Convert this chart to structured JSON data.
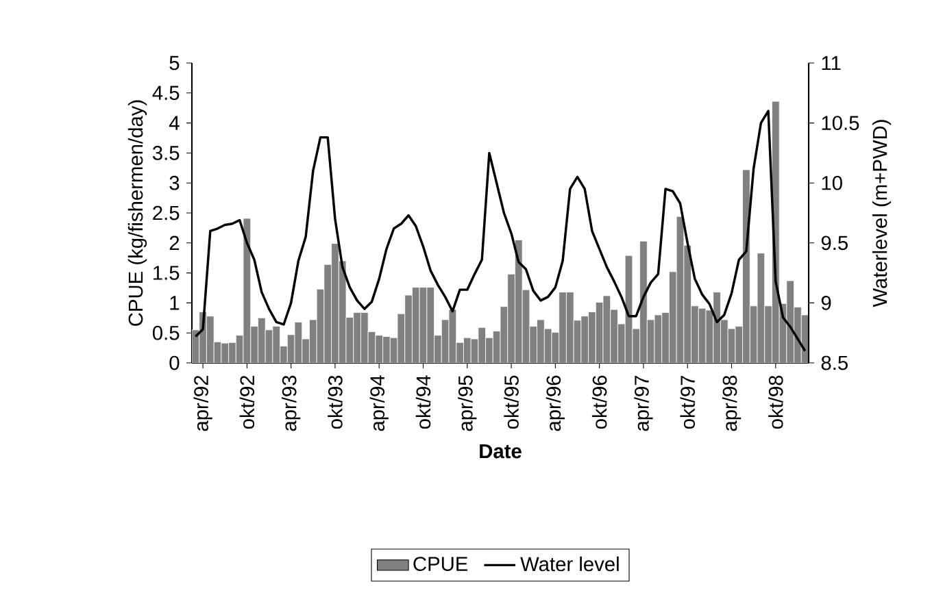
{
  "chart_data": {
    "type": "bar",
    "xlabel": "Date",
    "ylabel": "CPUE (kg/fishermen/day)",
    "y2label": "Waterlevel (m+PWD)",
    "x": [
      "1992-03",
      "1992-04",
      "1992-05",
      "1992-06",
      "1992-07",
      "1992-08",
      "1992-09",
      "1992-10",
      "1992-11",
      "1992-12",
      "1993-01",
      "1993-02",
      "1993-03",
      "1993-04",
      "1993-05",
      "1993-06",
      "1993-07",
      "1993-08",
      "1993-09",
      "1993-10",
      "1993-11",
      "1993-12",
      "1994-01",
      "1994-02",
      "1994-03",
      "1994-04",
      "1994-05",
      "1994-06",
      "1994-07",
      "1994-08",
      "1994-09",
      "1994-10",
      "1994-11",
      "1994-12",
      "1995-01",
      "1995-02",
      "1995-03",
      "1995-04",
      "1995-05",
      "1995-06",
      "1995-07",
      "1995-08",
      "1995-09",
      "1995-10",
      "1995-11",
      "1995-12",
      "1996-01",
      "1996-02",
      "1996-03",
      "1996-04",
      "1996-05",
      "1996-06",
      "1996-07",
      "1996-08",
      "1996-09",
      "1996-10",
      "1996-11",
      "1996-12",
      "1997-01",
      "1997-02",
      "1997-03",
      "1997-04",
      "1997-05",
      "1997-06",
      "1997-07",
      "1997-08",
      "1997-09",
      "1997-10",
      "1997-11",
      "1997-12",
      "1998-01",
      "1998-02",
      "1998-03",
      "1998-04",
      "1998-05",
      "1998-06",
      "1998-07",
      "1998-08",
      "1998-09",
      "1998-10",
      "1998-11",
      "1998-12",
      "1999-01",
      "1999-02"
    ],
    "series": [
      {
        "name": "CPUE",
        "color": "#808080",
        "values": [
          0.55,
          0.85,
          0.78,
          0.35,
          0.33,
          0.34,
          0.46,
          2.41,
          0.61,
          0.75,
          0.55,
          0.61,
          0.28,
          0.47,
          0.68,
          0.4,
          0.72,
          1.23,
          1.64,
          1.99,
          1.7,
          0.76,
          0.84,
          0.84,
          0.52,
          0.46,
          0.44,
          0.42,
          0.82,
          1.13,
          1.26,
          1.26,
          1.26,
          0.46,
          0.72,
          0.89,
          0.34,
          0.42,
          0.4,
          0.59,
          0.42,
          0.53,
          0.94,
          1.48,
          2.05,
          1.22,
          0.61,
          0.72,
          0.57,
          0.51,
          1.18,
          1.18,
          0.71,
          0.78,
          0.85,
          1.01,
          1.12,
          0.89,
          0.65,
          1.79,
          0.57,
          2.03,
          0.72,
          0.8,
          0.84,
          1.52,
          2.44,
          1.96,
          0.95,
          0.91,
          0.88,
          1.18,
          0.72,
          0.57,
          0.61,
          3.22,
          0.95,
          1.83,
          0.95,
          4.36,
          0.99,
          1.37,
          0.93,
          0.8
        ]
      },
      {
        "name": "Water level",
        "type": "line",
        "axis": "y2",
        "color": "#000000",
        "values": [
          8.72,
          8.78,
          9.6,
          9.62,
          9.65,
          9.66,
          9.69,
          9.5,
          9.36,
          9.09,
          8.95,
          8.84,
          8.82,
          9.0,
          9.35,
          9.55,
          10.1,
          10.38,
          10.38,
          9.7,
          9.3,
          9.13,
          9.02,
          8.95,
          9.01,
          9.2,
          9.45,
          9.62,
          9.66,
          9.73,
          9.64,
          9.47,
          9.27,
          9.15,
          9.05,
          8.93,
          9.11,
          9.11,
          9.24,
          9.36,
          10.25,
          10.0,
          9.75,
          9.58,
          9.34,
          9.28,
          9.1,
          9.02,
          9.05,
          9.13,
          9.35,
          9.95,
          10.05,
          9.95,
          9.6,
          9.45,
          9.3,
          9.18,
          9.05,
          8.89,
          8.89,
          9.05,
          9.17,
          9.24,
          9.95,
          9.93,
          9.83,
          9.5,
          9.2,
          9.07,
          8.99,
          8.84,
          8.9,
          9.08,
          9.36,
          9.43,
          10.12,
          10.5,
          10.6,
          9.18,
          8.88,
          8.8,
          8.7,
          8.6
        ]
      }
    ],
    "xlim": [
      "1992-02-16",
      "1999-02-16"
    ],
    "xticks": [
      {
        "value": "1992-04",
        "label": "apr/92"
      },
      {
        "value": "1992-10",
        "label": "okt/92"
      },
      {
        "value": "1993-04",
        "label": "apr/93"
      },
      {
        "value": "1993-10",
        "label": "okt/93"
      },
      {
        "value": "1994-04",
        "label": "apr/94"
      },
      {
        "value": "1994-10",
        "label": "okt/94"
      },
      {
        "value": "1995-04",
        "label": "apr/95"
      },
      {
        "value": "1995-10",
        "label": "okt/95"
      },
      {
        "value": "1996-04",
        "label": "apr/96"
      },
      {
        "value": "1996-10",
        "label": "okt/96"
      },
      {
        "value": "1997-04",
        "label": "apr/97"
      },
      {
        "value": "1997-10",
        "label": "okt/97"
      },
      {
        "value": "1998-04",
        "label": "apr/98"
      },
      {
        "value": "1998-10",
        "label": "okt/98"
      }
    ],
    "ylim": [
      0,
      5
    ],
    "yticks": [
      0,
      0.5,
      1,
      1.5,
      2,
      2.5,
      3,
      3.5,
      4,
      4.5,
      5
    ],
    "y2lim": [
      8.5,
      11
    ],
    "y2ticks": [
      8.5,
      9,
      9.5,
      10,
      10.5,
      11
    ],
    "marker": "none",
    "line_style": "solid",
    "grid": false,
    "legend": "bottom"
  }
}
